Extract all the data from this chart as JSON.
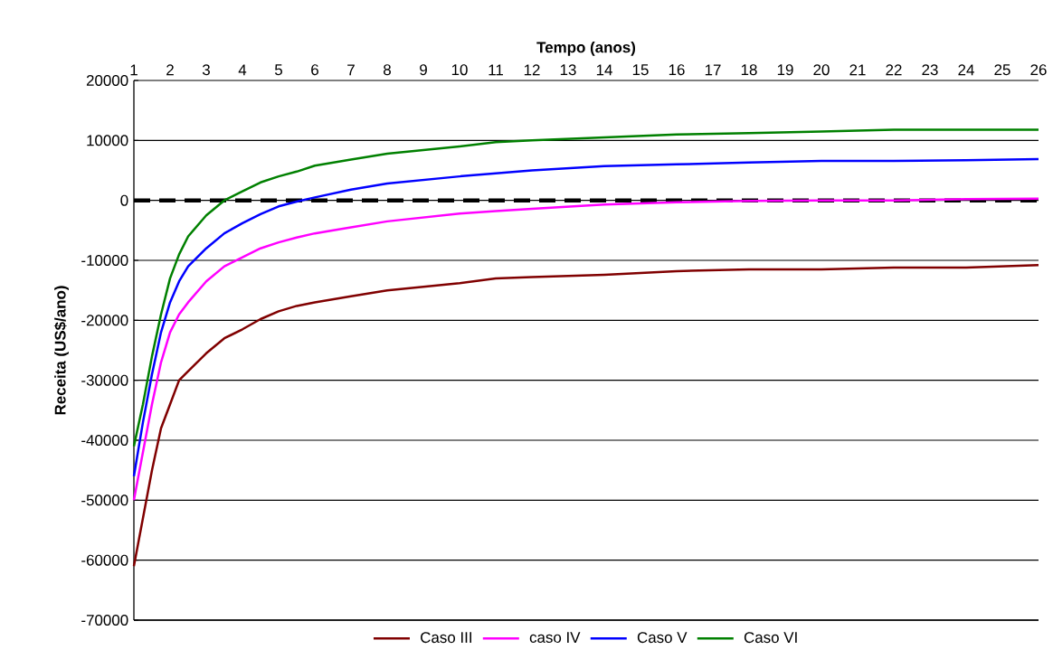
{
  "chart_data": {
    "type": "line",
    "xlabel": "Tempo (anos)",
    "ylabel": "Receita (US$/ano)",
    "x": [
      1,
      1.25,
      1.5,
      1.75,
      2,
      2.25,
      2.5,
      3,
      3.5,
      4,
      4.5,
      5,
      5.5,
      6,
      7,
      8,
      10,
      11,
      12,
      14,
      16,
      18,
      20,
      22,
      24,
      26
    ],
    "series": [
      {
        "name": "Caso III",
        "color": "#800000",
        "values": [
          -61000,
          -53000,
          -45000,
          -38000,
          -34000,
          -30000,
          -28500,
          -25500,
          -23000,
          -21500,
          -19800,
          -18500,
          -17600,
          -17000,
          -16000,
          -15000,
          -13800,
          -13000,
          -12800,
          -12400,
          -11800,
          -11500,
          -11500,
          -11200,
          -11200,
          -10800
        ]
      },
      {
        "name": "caso IV",
        "color": "#ff00ff",
        "values": [
          -50000,
          -42000,
          -34000,
          -27000,
          -22000,
          -19000,
          -17000,
          -13500,
          -11000,
          -9500,
          -8000,
          -7000,
          -6200,
          -5500,
          -4500,
          -3500,
          -2200,
          -1800,
          -1400,
          -700,
          -300,
          -100,
          0,
          0,
          200,
          300
        ]
      },
      {
        "name": "Caso V",
        "color": "#0000ff",
        "values": [
          -46000,
          -37000,
          -29000,
          -22000,
          -17000,
          -13500,
          -11000,
          -8000,
          -5500,
          -3800,
          -2300,
          -1000,
          -200,
          500,
          1800,
          2800,
          4000,
          4500,
          5000,
          5700,
          6000,
          6300,
          6600,
          6600,
          6700,
          6900
        ]
      },
      {
        "name": "Caso VI",
        "color": "#008000",
        "values": [
          -41000,
          -34000,
          -26000,
          -19000,
          -13000,
          -9000,
          -6000,
          -2500,
          0,
          1500,
          3000,
          4000,
          4800,
          5800,
          6800,
          7800,
          9000,
          9700,
          10000,
          10500,
          11000,
          11200,
          11500,
          11800,
          11800,
          11800
        ]
      }
    ],
    "xlim": [
      1,
      26
    ],
    "xticks": [
      1,
      2,
      3,
      4,
      5,
      6,
      7,
      8,
      9,
      10,
      11,
      12,
      13,
      14,
      15,
      16,
      17,
      18,
      19,
      20,
      21,
      22,
      23,
      24,
      25,
      26
    ],
    "ylim": [
      -70000,
      20000
    ],
    "yticks": [
      -70000,
      -60000,
      -50000,
      -40000,
      -30000,
      -20000,
      -10000,
      0,
      10000,
      20000
    ],
    "grid": "y",
    "legend": "bottom",
    "marker": "none",
    "line_style": "solid",
    "ref_lines": [
      {
        "axis": "y",
        "value": 0,
        "color": "#000000",
        "line_style": "dashed"
      }
    ]
  }
}
